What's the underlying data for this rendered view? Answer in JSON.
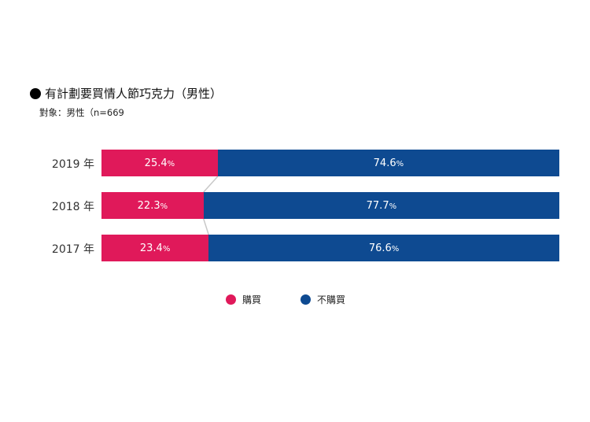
{
  "colors": {
    "purchase": "#E0195A",
    "no_purchase": "#0E4A91",
    "connector": "#C8C8C8"
  },
  "legend": {
    "purchase": "購買",
    "no_purchase": "不購買"
  },
  "chart_data": {
    "type": "bar",
    "orientation": "horizontal",
    "stacked": true,
    "percent_stacked": true,
    "title": "有計劃要買情人節巧克力（男性）",
    "subtitle": "對象：男性（n=669",
    "categories": [
      "2019 年",
      "2018 年",
      "2017 年"
    ],
    "series": [
      {
        "name": "購買",
        "values": [
          25.4,
          22.3,
          23.4
        ]
      },
      {
        "name": "不購買",
        "values": [
          74.6,
          77.7,
          76.6
        ]
      }
    ],
    "unit": "%",
    "xlim": [
      0,
      100
    ],
    "grid": false,
    "legend_position": "bottom-center"
  }
}
